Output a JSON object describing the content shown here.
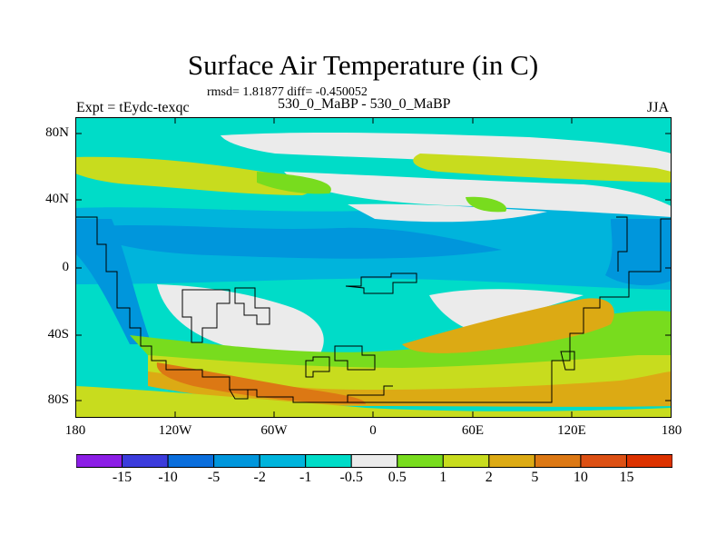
{
  "title": "Surface Air Temperature (in C)",
  "subtitle": "rmsd= 1.81877 diff= -0.450052",
  "left_label": "Expt = tEydc-texqc",
  "center_label": "530_0_MaBP - 530_0_MaBP",
  "right_label": "JJA",
  "map": {
    "lat_ticks": [
      "80N",
      "40N",
      "0",
      "40S",
      "80S"
    ],
    "lon_ticks": [
      "180",
      "120W",
      "60W",
      "0",
      "60E",
      "120E",
      "180"
    ],
    "bands": [
      {
        "level": "-1 to -0.5",
        "color": "#00dcc8"
      },
      {
        "level": "-0.5 to 0.5",
        "color": "#ebebeb"
      },
      {
        "level": "-2 to -1",
        "color": "#00b4dc"
      },
      {
        "level": "0.5 to 1",
        "color": "#78dc1e"
      },
      {
        "level": "1 to 2",
        "color": "#c8dc1e"
      },
      {
        "level": "2 to 5",
        "color": "#dcaa14"
      },
      {
        "level": "5 to 10",
        "color": "#dc7814"
      },
      {
        "level": "-5 to -2",
        "color": "#0096dc"
      }
    ]
  },
  "colorbar": {
    "labels": [
      "-15",
      "-10",
      "-5",
      "-2",
      "-1",
      "-0.5",
      "0.5",
      "1",
      "2",
      "5",
      "10",
      "15"
    ],
    "colors": [
      "#8c1ee6",
      "#3c3cdc",
      "#0a6edc",
      "#0096dc",
      "#00b4dc",
      "#00dcc8",
      "#ebebeb",
      "#78dc1e",
      "#c8dc1e",
      "#dcaa14",
      "#dc7814",
      "#dc5014",
      "#dc3200"
    ]
  }
}
